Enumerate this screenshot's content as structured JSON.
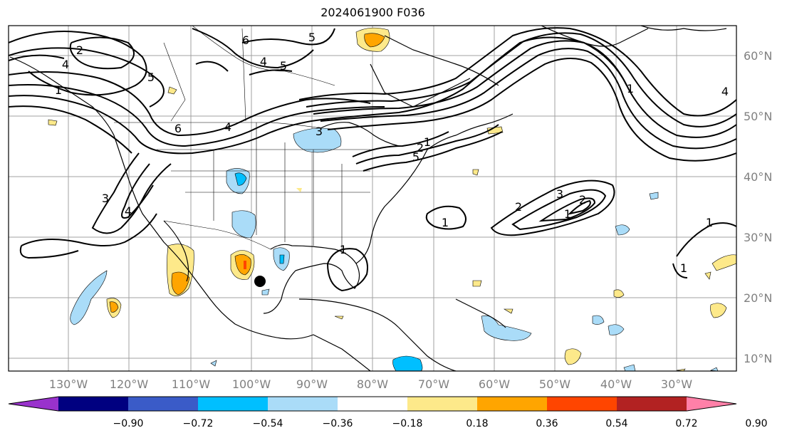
{
  "title": "2024061900 F036",
  "map": {
    "lat_labels": [
      "60°N",
      "50°N",
      "40°N",
      "30°N",
      "20°N",
      "10°N"
    ],
    "lon_labels": [
      "130°W",
      "120°W",
      "110°W",
      "100°W",
      "90°W",
      "80°W",
      "70°W",
      "60°W",
      "50°W",
      "40°W",
      "30°W"
    ],
    "contour_labels": [
      "6",
      "4",
      "5",
      "4",
      "5",
      "6",
      "5",
      "4",
      "3",
      "2",
      "4",
      "1",
      "2",
      "3",
      "1",
      "1",
      "1",
      "1",
      "2",
      "3",
      "1",
      "4",
      "5",
      "1",
      "1",
      "2"
    ]
  },
  "colorbar": {
    "labels": [
      "−0.90",
      "−0.72",
      "−0.54",
      "−0.36",
      "−0.18",
      "0.18",
      "0.36",
      "0.54",
      "0.72",
      "0.90"
    ],
    "colors": [
      "#9932cc",
      "#000080",
      "#3a5bc8",
      "#00bfff",
      "#aadcf8",
      "#ffffff",
      "#fde98a",
      "#ffa500",
      "#ff4500",
      "#b22222",
      "#ff80a8"
    ]
  }
}
